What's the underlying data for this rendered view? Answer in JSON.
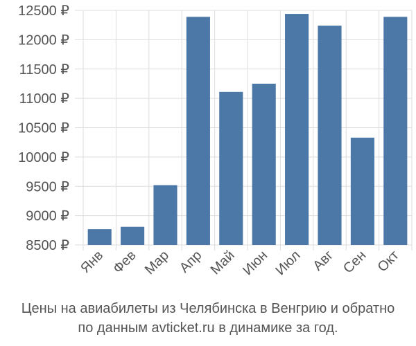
{
  "chart_data": {
    "type": "bar",
    "categories": [
      "Янв",
      "Фев",
      "Мар",
      "Апр",
      "Май",
      "Июн",
      "Июл",
      "Авг",
      "Сен",
      "Окт"
    ],
    "values": [
      8770,
      8810,
      9520,
      12390,
      11110,
      11250,
      12440,
      12240,
      10330,
      12390
    ],
    "ylim": [
      8500,
      12500
    ],
    "yticks": [
      8500,
      9000,
      9500,
      10000,
      10500,
      11000,
      11500,
      12000,
      12500
    ],
    "ytick_labels": [
      "8500 ₽",
      "9000 ₽",
      "9500 ₽",
      "10000 ₽",
      "10500 ₽",
      "11000 ₽",
      "11500 ₽",
      "12000 ₽",
      "12500 ₽"
    ],
    "grid": true,
    "bar_color": "#4c78a8",
    "caption_lines": [
      "Цены на авиабилеты из Челябинска в Венгрию и обратно",
      "по данным avticket.ru в динамике за год."
    ]
  }
}
